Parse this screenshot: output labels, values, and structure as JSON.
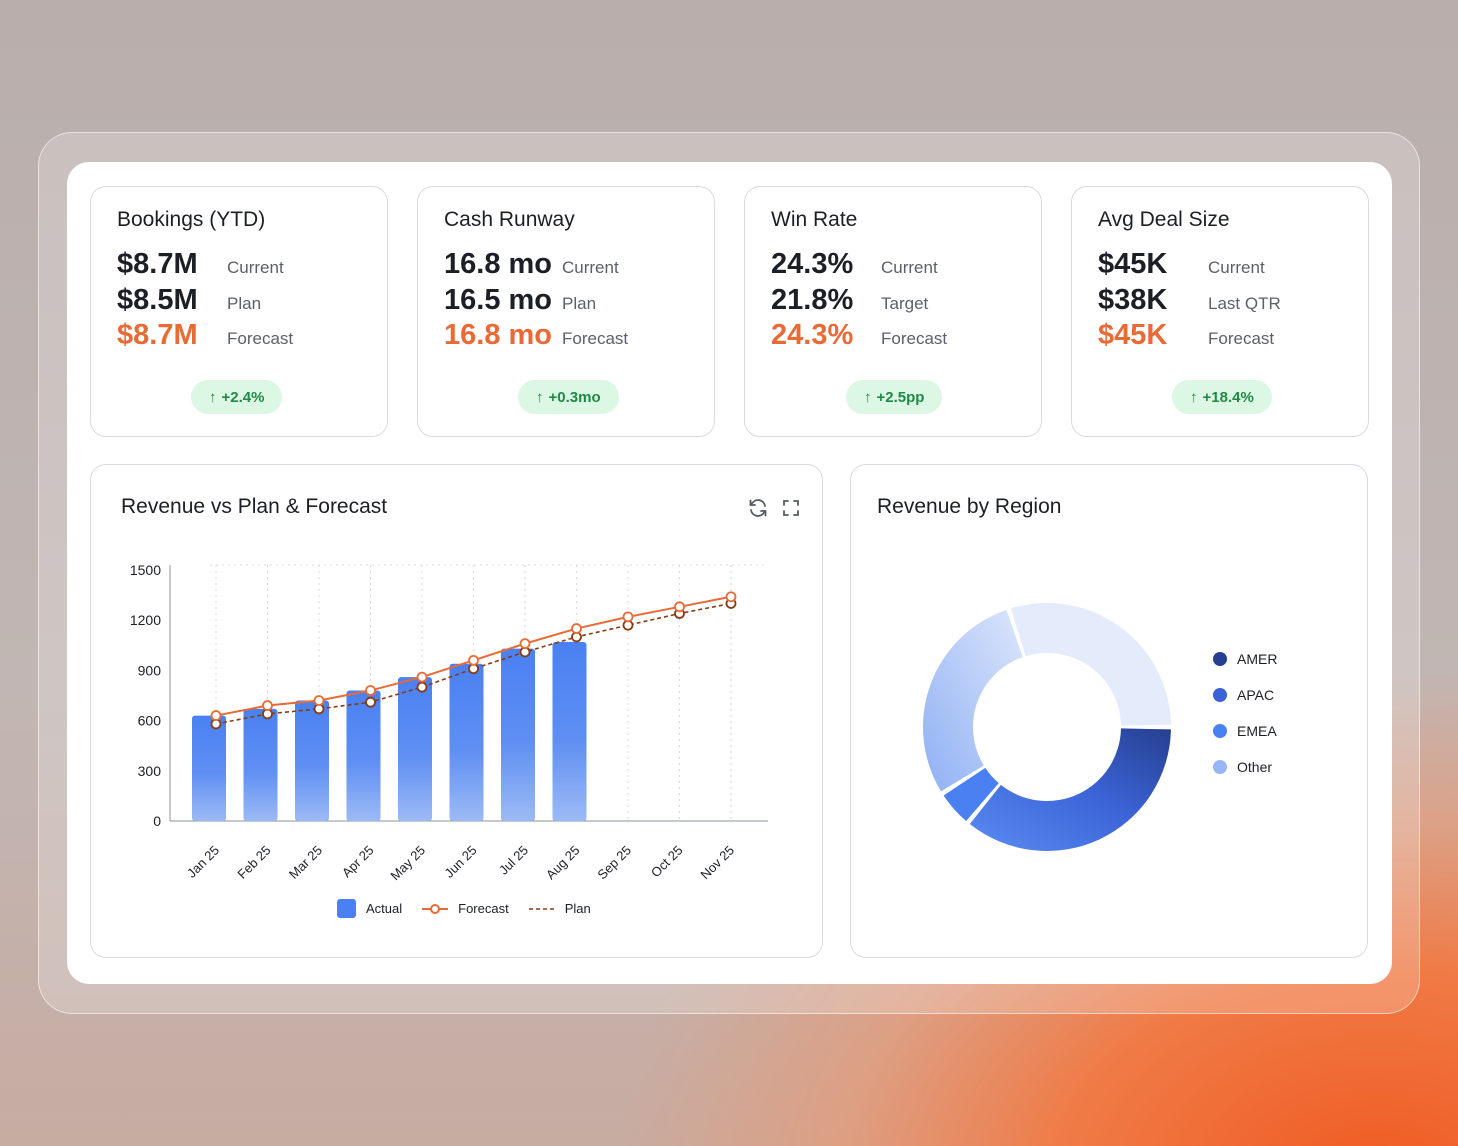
{
  "kpis": [
    {
      "title": "Bookings (YTD)",
      "current": "$8.7M",
      "current_label": "Current",
      "second": "$8.5M",
      "second_label": "Plan",
      "forecast": "$8.7M",
      "forecast_label": "Forecast",
      "badge": "+2.4%"
    },
    {
      "title": "Cash Runway",
      "current": "16.8 mo",
      "current_label": "Current",
      "second": "16.5 mo",
      "second_label": "Plan",
      "forecast": "16.8 mo",
      "forecast_label": "Forecast",
      "badge": "+0.3mo"
    },
    {
      "title": "Win Rate",
      "current": "24.3%",
      "current_label": "Current",
      "second": "21.8%",
      "second_label": "Target",
      "forecast": "24.3%",
      "forecast_label": "Forecast",
      "badge": "+2.5pp"
    },
    {
      "title": "Avg Deal Size",
      "current": "$45K",
      "current_label": "Current",
      "second": "$38K",
      "second_label": "Last QTR",
      "forecast": "$45K",
      "forecast_label": "Forecast",
      "badge": "+18.4%"
    }
  ],
  "revenue_card": {
    "title": "Revenue vs Plan & Forecast",
    "refresh_icon": "refresh-icon",
    "expand_icon": "expand-icon"
  },
  "region_card": {
    "title": "Revenue by Region"
  },
  "colors": {
    "accent_orange": "#ea6a36",
    "plan_brown": "#8a3a12",
    "bar_blue": "#4a80f2",
    "badge_green_bg": "#dcf7e4",
    "badge_green_text": "#1f8a45",
    "amer": "#263f8f",
    "apac": "#3b63d6",
    "emea": "#4a80f2",
    "other": "#98b6f6"
  },
  "chart_data": [
    {
      "type": "bar",
      "title": "Revenue vs Plan & Forecast",
      "categories": [
        "Jan 25",
        "Feb 25",
        "Mar 25",
        "Apr 25",
        "May 25",
        "Jun 25",
        "Jul 25",
        "Aug 25",
        "Sep 25",
        "Oct 25",
        "Nov 25"
      ],
      "yticks": [
        "0",
        "300",
        "600",
        "900",
        "1200",
        "1500"
      ],
      "ylim": [
        0,
        1500
      ],
      "grid": true,
      "legend_position": "bottom",
      "series": [
        {
          "name": "Actual",
          "type": "bar",
          "values": [
            630,
            670,
            720,
            780,
            860,
            940,
            1030,
            1070,
            null,
            null,
            null
          ]
        },
        {
          "name": "Forecast",
          "type": "line",
          "values": [
            630,
            690,
            720,
            780,
            860,
            960,
            1060,
            1150,
            1220,
            1280,
            1340
          ]
        },
        {
          "name": "Plan",
          "type": "dashed-line",
          "values": [
            580,
            640,
            670,
            710,
            800,
            910,
            1010,
            1100,
            1170,
            1240,
            1300
          ]
        }
      ]
    },
    {
      "type": "pie",
      "title": "Revenue by Region",
      "categories": [
        "AMER",
        "APAC",
        "EMEA",
        "Other"
      ],
      "values": [
        36,
        0,
        5,
        29
      ],
      "extra_segment_share": 30,
      "legend_position": "right",
      "note_segments": [
        {
          "name": "AMER/APAC gradient",
          "value": 36
        },
        {
          "name": "EMEA",
          "value": 5
        },
        {
          "name": "Other",
          "value": 29
        },
        {
          "name": "light",
          "value": 30
        }
      ]
    }
  ],
  "legend": {
    "actual": "Actual",
    "forecast": "Forecast",
    "plan": "Plan"
  },
  "regions": [
    "AMER",
    "APAC",
    "EMEA",
    "Other"
  ]
}
